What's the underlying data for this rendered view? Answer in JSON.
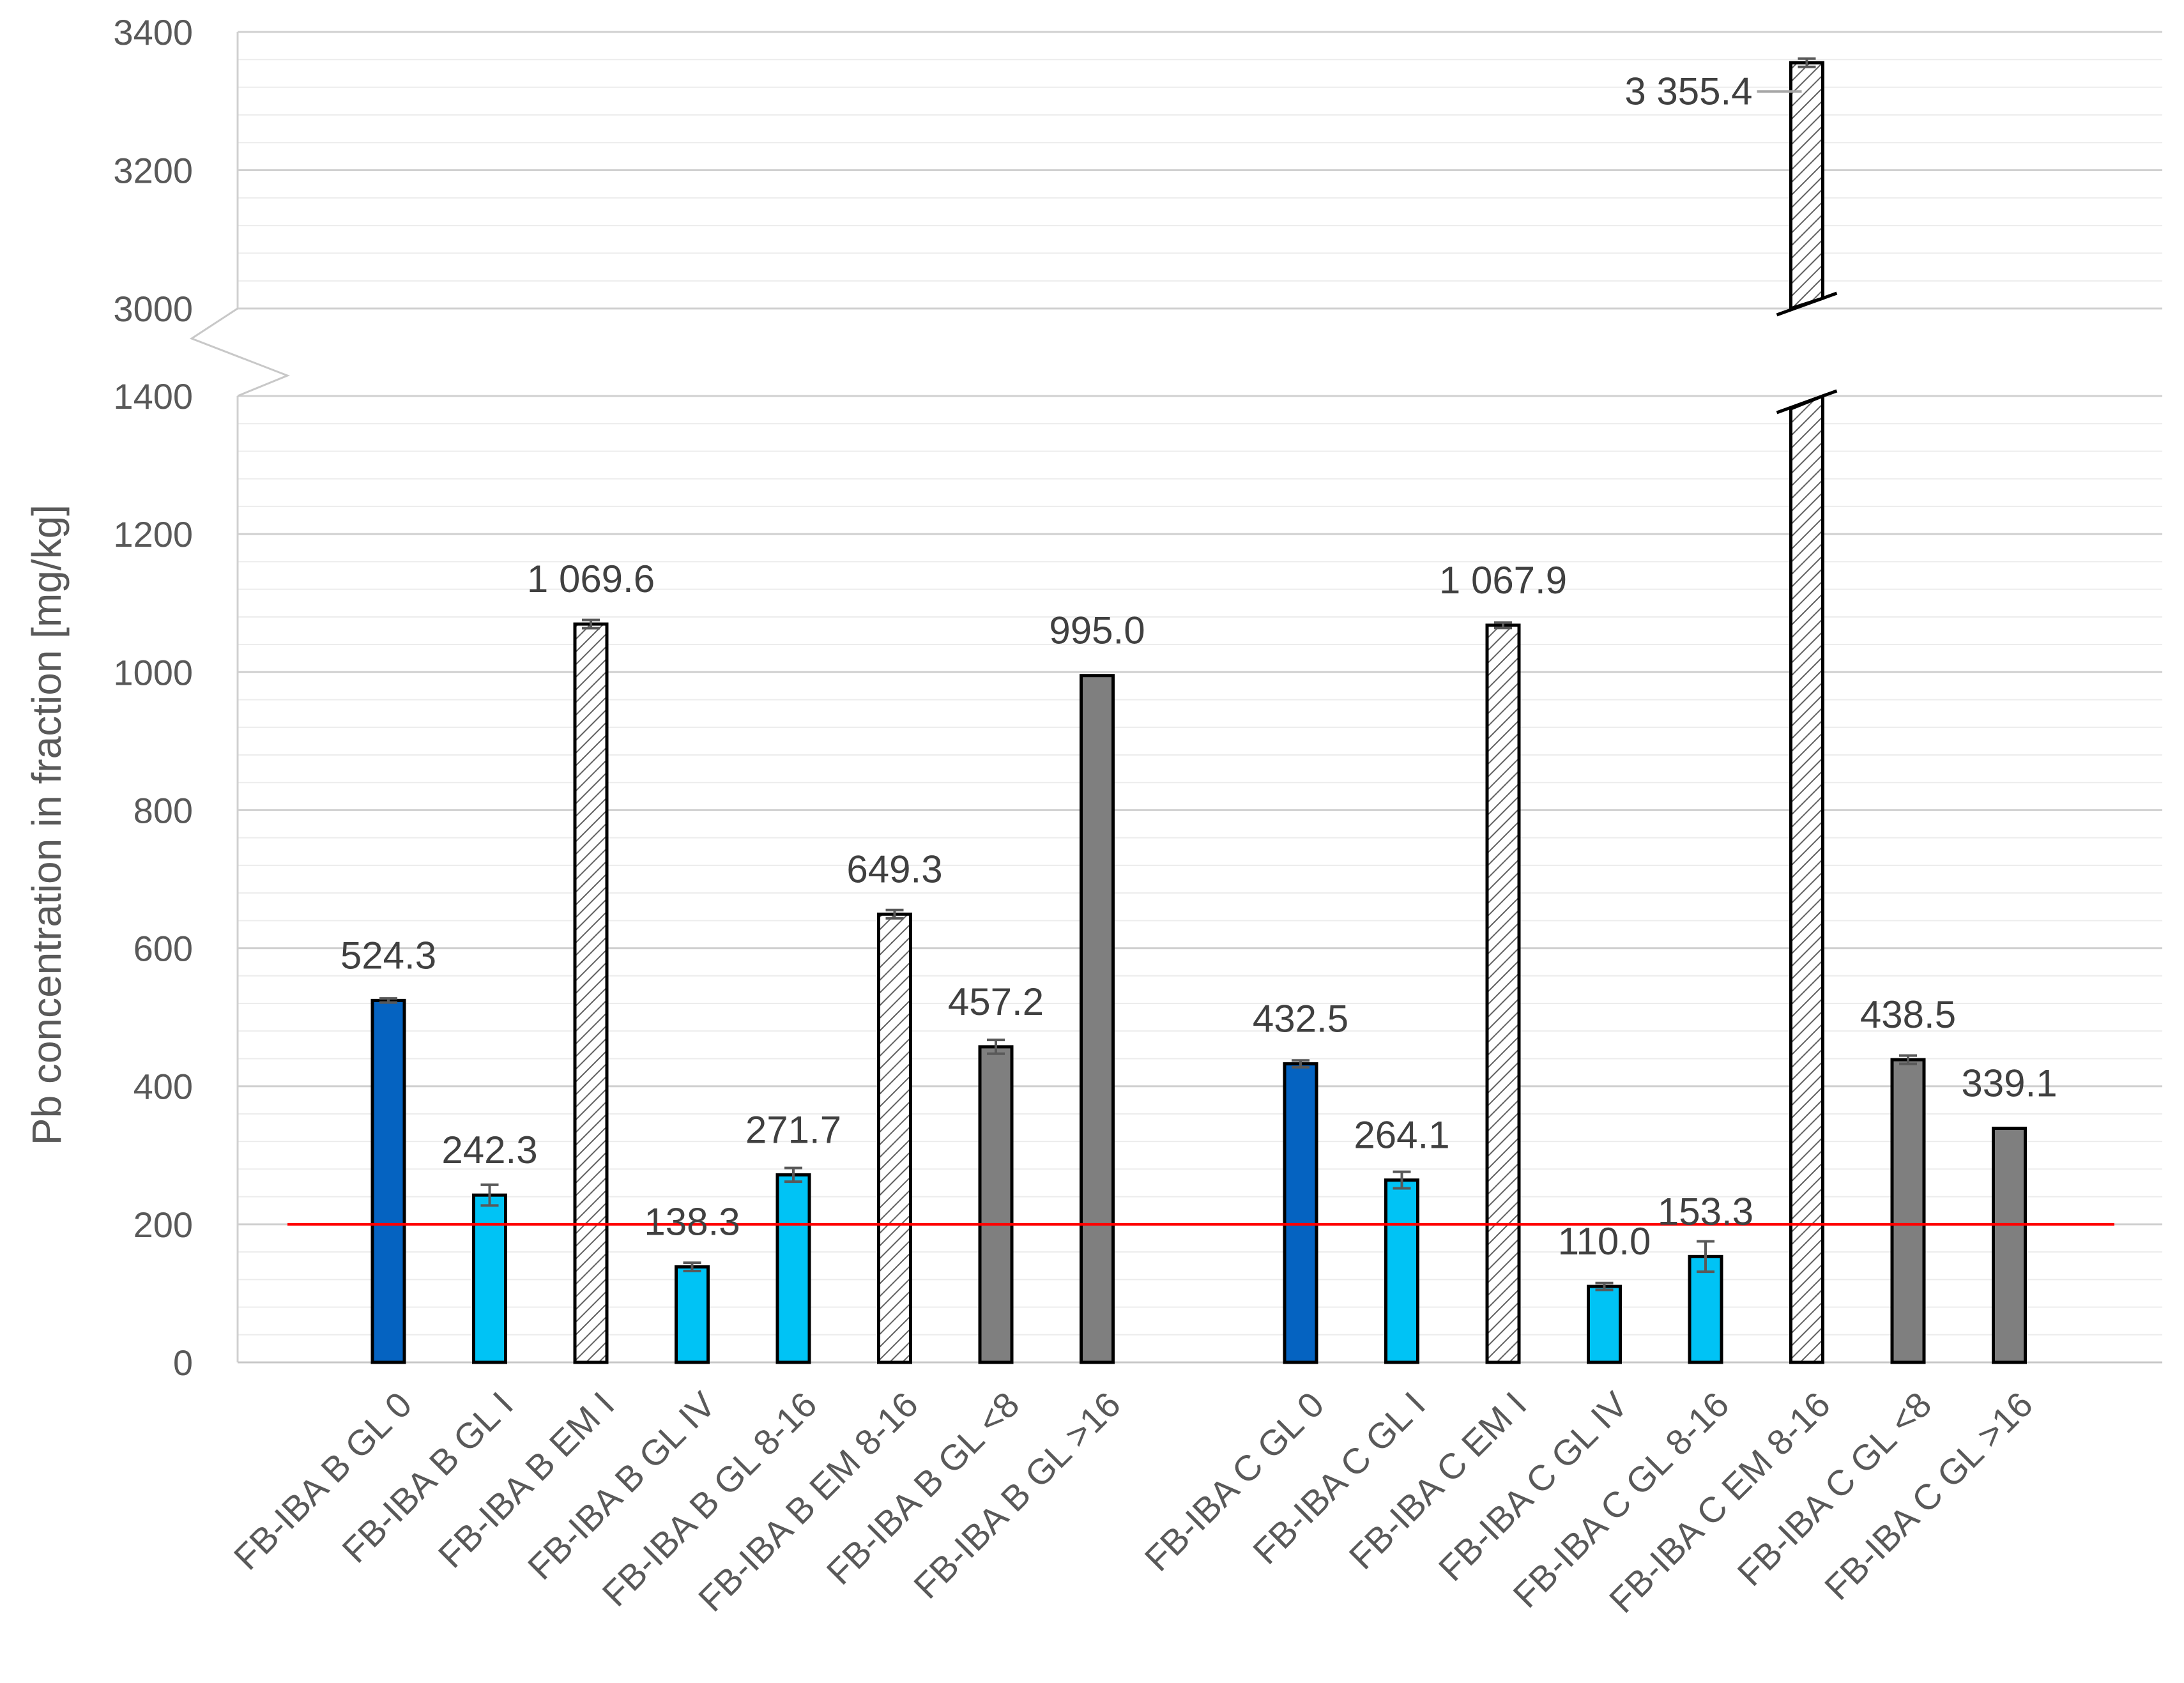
{
  "chart_data": {
    "type": "bar",
    "ylabel": "Pb concentration in fraction [mg/kg]",
    "y_axis_break": {
      "lower": [
        0,
        1400
      ],
      "upper": [
        3000,
        3400
      ]
    },
    "lower_ticks": [
      "0",
      "200",
      "400",
      "600",
      "800",
      "1000",
      "1200",
      "1400"
    ],
    "upper_ticks": [
      "3000",
      "3200",
      "3400"
    ],
    "reference_line": {
      "value": 200,
      "color": "#ff0000"
    },
    "grid": true,
    "colors": {
      "dark_blue": "#0563c1",
      "light_blue": "#00c3f5",
      "hatched": "#ffffff",
      "gray": "#7f7f7f",
      "edge": "#000000"
    },
    "groups": [
      {
        "bars": [
          {
            "category": "FB-IBA B GL 0",
            "value": 524.3,
            "label": "524.3",
            "fill": "dark_blue",
            "err": 3
          },
          {
            "category": "FB-IBA B GL I",
            "value": 242.3,
            "label": "242.3",
            "fill": "light_blue",
            "err": 15
          },
          {
            "category": "FB-IBA B EM I",
            "value": 1069.6,
            "label": "1 069.6",
            "fill": "hatched",
            "err": 6
          },
          {
            "category": "FB-IBA B GL IV",
            "value": 138.3,
            "label": "138.3",
            "fill": "light_blue",
            "err": 6
          },
          {
            "category": "FB-IBA B GL 8-16",
            "value": 271.7,
            "label": "271.7",
            "fill": "light_blue",
            "err": 10
          },
          {
            "category": "FB-IBA B EM 8-16",
            "value": 649.3,
            "label": "649.3",
            "fill": "hatched",
            "err": 6
          },
          {
            "category": "FB-IBA B GL <8",
            "value": 457.2,
            "label": "457.2",
            "fill": "gray",
            "err": 10
          },
          {
            "category": "FB-IBA B GL >16",
            "value": 995.0,
            "label": "995.0",
            "fill": "gray",
            "err": 0
          }
        ]
      },
      {
        "bars": [
          {
            "category": "FB-IBA C GL 0",
            "value": 432.5,
            "label": "432.5",
            "fill": "dark_blue",
            "err": 5
          },
          {
            "category": "FB-IBA C GL I",
            "value": 264.1,
            "label": "264.1",
            "fill": "light_blue",
            "err": 12
          },
          {
            "category": "FB-IBA C EM I",
            "value": 1067.9,
            "label": "1 067.9",
            "fill": "hatched",
            "err": 4
          },
          {
            "category": "FB-IBA C GL IV",
            "value": 110.0,
            "label": "110.0",
            "fill": "light_blue",
            "err": 5
          },
          {
            "category": "FB-IBA C GL 8-16",
            "value": 153.3,
            "label": "153.3",
            "fill": "light_blue",
            "err": 22
          },
          {
            "category": "FB-IBA C EM 8-16",
            "value": 3355.4,
            "label": "3 355.4",
            "fill": "hatched",
            "err": 6
          },
          {
            "category": "FB-IBA C GL <8",
            "value": 438.5,
            "label": "438.5",
            "fill": "gray",
            "err": 6
          },
          {
            "category": "FB-IBA C GL >16",
            "value": 339.1,
            "label": "339.1",
            "fill": "gray",
            "err": 0
          }
        ]
      }
    ]
  }
}
